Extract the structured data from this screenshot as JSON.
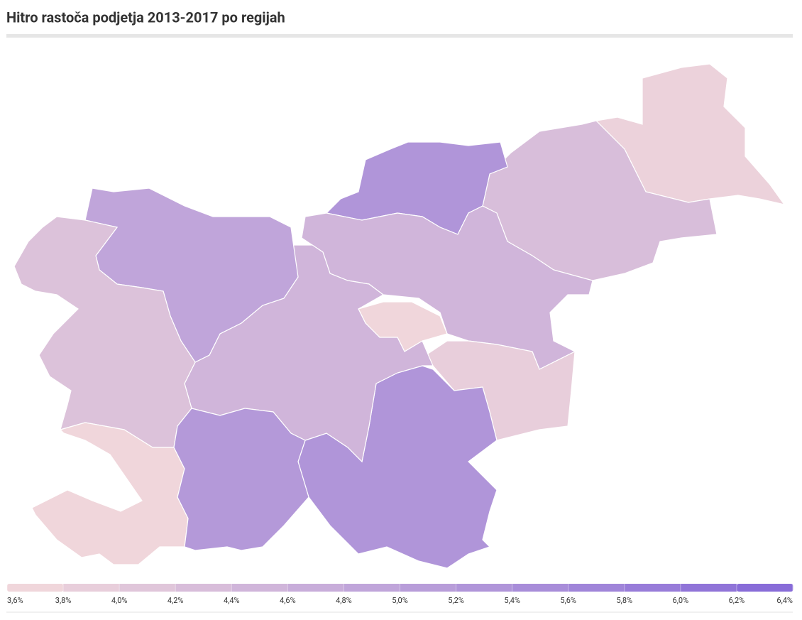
{
  "chart_data": {
    "type": "choropleth",
    "title": "Hitro rastoča podjetja 2013-2017 po regijah",
    "values": [
      3.8,
      4.3,
      5.3,
      4.5,
      3.7,
      3.9,
      5.3,
      4.5,
      4.9,
      4.2,
      3.7,
      5.2
    ],
    "low_color": "#f4dadb",
    "high_color": "#8468d8",
    "range": [
      3.6,
      6.4
    ],
    "ticks": [
      {
        "value": 3.6,
        "label": "3,6%"
      },
      {
        "value": 3.8,
        "label": "3,8%"
      },
      {
        "value": 4.0,
        "label": "4,0%"
      },
      {
        "value": 4.2,
        "label": "4,2%"
      },
      {
        "value": 4.4,
        "label": "4,4%"
      },
      {
        "value": 4.6,
        "label": "4,6%"
      },
      {
        "value": 4.8,
        "label": "4,8%"
      },
      {
        "value": 5.0,
        "label": "5,0%"
      },
      {
        "value": 5.2,
        "label": "5,2%"
      },
      {
        "value": 5.4,
        "label": "5,4%"
      },
      {
        "value": 5.6,
        "label": "5,6%"
      },
      {
        "value": 5.8,
        "label": "5,8%"
      },
      {
        "value": 6.0,
        "label": "6,0%"
      },
      {
        "value": 6.2,
        "label": "6,2%"
      },
      {
        "value": 6.4,
        "label": "6,4%"
      }
    ]
  }
}
